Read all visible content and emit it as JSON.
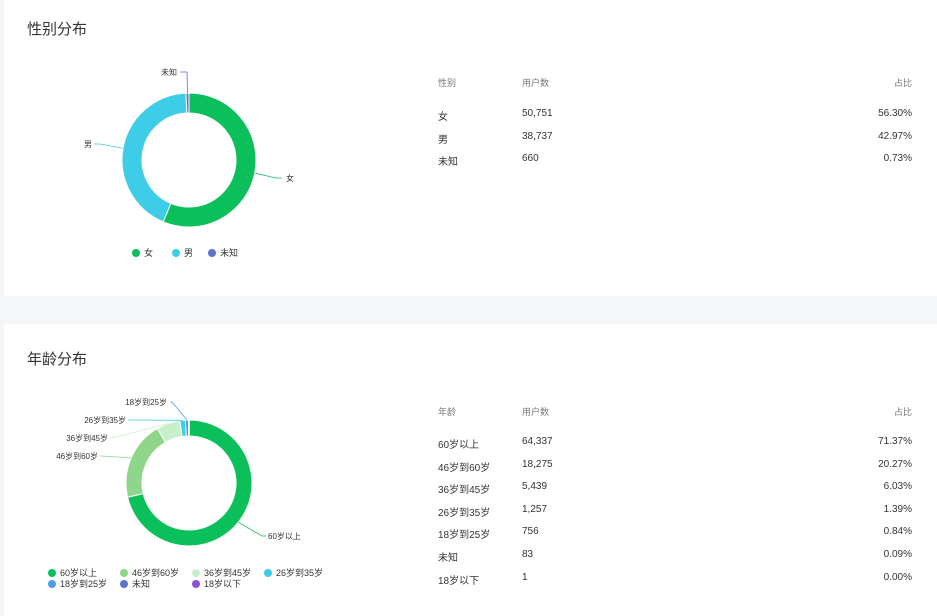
{
  "gender": {
    "title": "性别分布",
    "table_headers": [
      "性别",
      "用户数",
      "占比"
    ],
    "rows": [
      {
        "label": "女",
        "count": "50,751",
        "pct": "56.30%"
      },
      {
        "label": "男",
        "count": "38,737",
        "pct": "42.97%"
      },
      {
        "label": "未知",
        "count": "660",
        "pct": "0.73%"
      }
    ],
    "legend": [
      "女",
      "男",
      "未知"
    ]
  },
  "age": {
    "title": "年龄分布",
    "table_headers": [
      "年龄",
      "用户数",
      "占比"
    ],
    "rows": [
      {
        "label": "60岁以上",
        "count": "64,337",
        "pct": "71.37%"
      },
      {
        "label": "46岁到60岁",
        "count": "18,275",
        "pct": "20.27%"
      },
      {
        "label": "36岁到45岁",
        "count": "5,439",
        "pct": "6.03%"
      },
      {
        "label": "26岁到35岁",
        "count": "1,257",
        "pct": "1.39%"
      },
      {
        "label": "18岁到25岁",
        "count": "756",
        "pct": "0.84%"
      },
      {
        "label": "未知",
        "count": "83",
        "pct": "0.09%"
      },
      {
        "label": "18岁以下",
        "count": "1",
        "pct": "0.00%"
      }
    ],
    "legend": [
      "60岁以上",
      "46岁到60岁",
      "36岁到45岁",
      "26岁到35岁",
      "18岁到25岁",
      "未知",
      "18岁以下"
    ]
  },
  "chart_data": [
    {
      "type": "pie",
      "title": "性别分布",
      "categories": [
        "女",
        "男",
        "未知"
      ],
      "values": [
        50751,
        38737,
        660
      ],
      "colors": [
        "#0bbf5a",
        "#3ecde6",
        "#5b73c9"
      ]
    },
    {
      "type": "pie",
      "title": "年龄分布",
      "categories": [
        "60岁以上",
        "46岁到60岁",
        "36岁到45岁",
        "26岁到35岁",
        "18岁到25岁",
        "未知",
        "18岁以下"
      ],
      "values": [
        64337,
        18275,
        5439,
        1257,
        756,
        83,
        1
      ],
      "colors": [
        "#0bbf5a",
        "#8fd58a",
        "#c8efcb",
        "#3ecde6",
        "#4a9fe6",
        "#5b73c9",
        "#8b52d6"
      ]
    }
  ]
}
